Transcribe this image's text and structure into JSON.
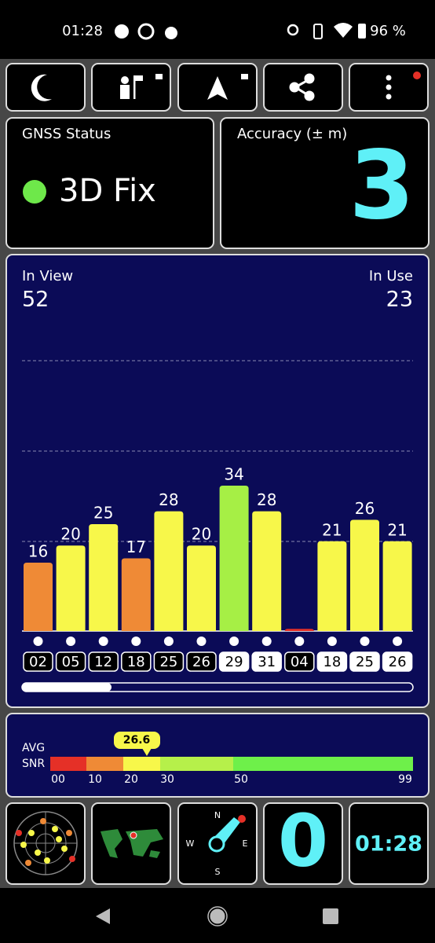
{
  "status_bar": {
    "time": "01:28",
    "battery": "96 %"
  },
  "gnss_status": {
    "title": "GNSS Status",
    "fix": "3D Fix"
  },
  "accuracy": {
    "title": "Accuracy (± m)",
    "value": "3"
  },
  "satellites": {
    "in_view_label": "In View",
    "in_view": "52",
    "in_use_label": "In Use",
    "in_use": "23"
  },
  "chart_data": {
    "type": "bar",
    "categories": [
      "02",
      "05",
      "12",
      "18",
      "25",
      "26",
      "29",
      "31",
      "04",
      "18",
      "25",
      "26"
    ],
    "values": [
      16,
      20,
      25,
      17,
      28,
      20,
      34,
      28,
      0.5,
      21,
      26,
      21
    ],
    "value_labels": [
      "16",
      "20",
      "25",
      "17",
      "28",
      "20",
      "34",
      "28",
      null,
      "21",
      "26",
      "21"
    ],
    "colors": [
      "#ef8a36",
      "#f7f74a",
      "#f7f74a",
      "#ef8a36",
      "#f7f74a",
      "#f7f74a",
      "#a6ef45",
      "#f7f74a",
      "#e53027",
      "#f7f74a",
      "#f7f74a",
      "#f7f74a"
    ],
    "in_use": [
      false,
      false,
      false,
      false,
      false,
      false,
      true,
      true,
      false,
      true,
      true,
      true
    ]
  },
  "snr": {
    "avg_label": "AVG",
    "snr_label": "SNR",
    "average": "26.6",
    "scale_labels": [
      "00",
      "10",
      "20",
      "30",
      "50",
      "99"
    ]
  },
  "widgets": {
    "satellite_count": "0",
    "clock": "01:28",
    "compass": [
      "N",
      "E",
      "S",
      "W"
    ]
  }
}
